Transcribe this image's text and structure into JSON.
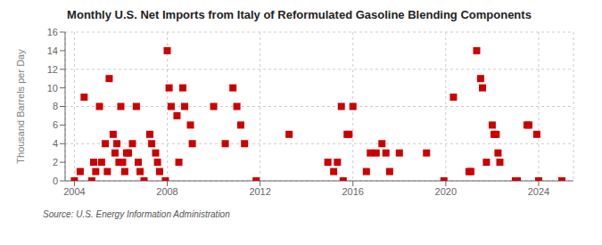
{
  "chart_data": {
    "type": "scatter",
    "title": "Monthly U.S. Net Imports from Italy of Reformulated Gasoline Blending Components",
    "ylabel": "Thousand Barrels per Day",
    "annotations": [
      "Source: U.S. Energy Information Administration"
    ],
    "x": [
      2004.0,
      2004.25,
      2004.42,
      2004.75,
      2004.83,
      2004.92,
      2005.08,
      2005.17,
      2005.33,
      2005.42,
      2005.5,
      2005.67,
      2005.75,
      2005.83,
      2005.92,
      2006.0,
      2006.08,
      2006.17,
      2006.25,
      2006.33,
      2006.5,
      2006.67,
      2006.75,
      2006.83,
      2007.0,
      2007.25,
      2007.33,
      2007.5,
      2007.58,
      2007.67,
      2007.92,
      2008.0,
      2008.08,
      2008.17,
      2008.42,
      2008.5,
      2008.67,
      2008.75,
      2009.0,
      2009.08,
      2010.0,
      2010.5,
      2010.83,
      2011.0,
      2011.17,
      2011.33,
      2011.83,
      2013.25,
      2014.92,
      2015.17,
      2015.33,
      2015.5,
      2015.58,
      2015.75,
      2015.83,
      2016.0,
      2016.58,
      2016.75,
      2017.0,
      2017.25,
      2017.42,
      2017.58,
      2018.0,
      2019.17,
      2019.92,
      2020.33,
      2021.0,
      2021.08,
      2021.33,
      2021.5,
      2021.58,
      2021.75,
      2022.0,
      2022.08,
      2022.17,
      2022.25,
      2022.33,
      2023.0,
      2023.08,
      2023.5,
      2023.58,
      2023.92,
      2024.0,
      2025.0
    ],
    "values": [
      0,
      1,
      9,
      0,
      2,
      1,
      8,
      2,
      4,
      1,
      11,
      5,
      3,
      4,
      2,
      8,
      2,
      1,
      3,
      3,
      4,
      8,
      2,
      1,
      0,
      5,
      4,
      3,
      2,
      1,
      0,
      14,
      10,
      8,
      7,
      2,
      10,
      8,
      6,
      4,
      8,
      4,
      10,
      8,
      6,
      4,
      0,
      5,
      2,
      1,
      2,
      8,
      0,
      5,
      5,
      8,
      1,
      3,
      3,
      4,
      3,
      1,
      3,
      3,
      0,
      9,
      1,
      1,
      14,
      11,
      10,
      2,
      6,
      5,
      5,
      3,
      2,
      0,
      0,
      6,
      6,
      5,
      0,
      0
    ],
    "color": "#cc0000",
    "marker": "square",
    "xlim": [
      2003.6,
      2025.5
    ],
    "xticks": [
      2004,
      2008,
      2012,
      2016,
      2020,
      2024
    ],
    "ylim": [
      0,
      16
    ],
    "yticks": [
      0,
      2,
      4,
      6,
      8,
      10,
      12,
      14,
      16
    ],
    "grid": true
  }
}
